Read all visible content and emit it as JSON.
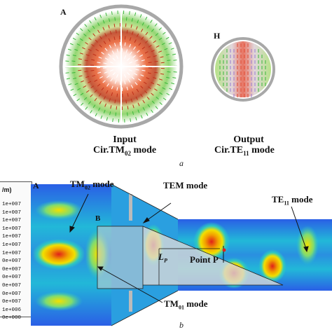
{
  "panel_a": {
    "input_marker": "A",
    "output_marker": "H",
    "input_title": "Input",
    "input_mode_prefix": "Cir.TM",
    "input_mode_sub": "02",
    "input_mode_suffix": " mode",
    "output_title": "Output",
    "output_mode_prefix": "Cir.TE",
    "output_mode_sub": "11",
    "output_mode_suffix": " mode",
    "caption": "a"
  },
  "panel_b": {
    "scale_unit": "/m)",
    "scale_values": [
      "1e+007",
      "1e+007",
      "1e+007",
      "1e+007",
      "1e+007",
      "1e+007",
      "1e+007",
      "0e+007",
      "0e+007",
      "0e+007",
      "0e+007",
      "0e+007",
      "0e+007",
      "1e+006",
      "0e+000"
    ],
    "marker_a": "A",
    "marker_b": "B",
    "label_tm02_prefix": "TM",
    "label_tm02_sub": "02",
    "label_tm02_suffix": " mode",
    "label_tem": "TEM mode",
    "label_te11_prefix": "TE",
    "label_te11_sub": "11",
    "label_te11_suffix": " mode",
    "label_tm01_prefix": "TM",
    "label_tm01_sub": "01",
    "label_tm01_suffix": " mode",
    "label_lp_main": "L",
    "label_lp_sub": "P",
    "label_point": "Point P",
    "caption": "b"
  },
  "colors": {
    "field_low": "#1a3fd6",
    "field_mid": "#2ec9c0",
    "field_high": "#f2e000",
    "field_peak": "#e0201a",
    "arrow_green": "#3bb83b",
    "wall_gray": "#a8a8a8"
  }
}
